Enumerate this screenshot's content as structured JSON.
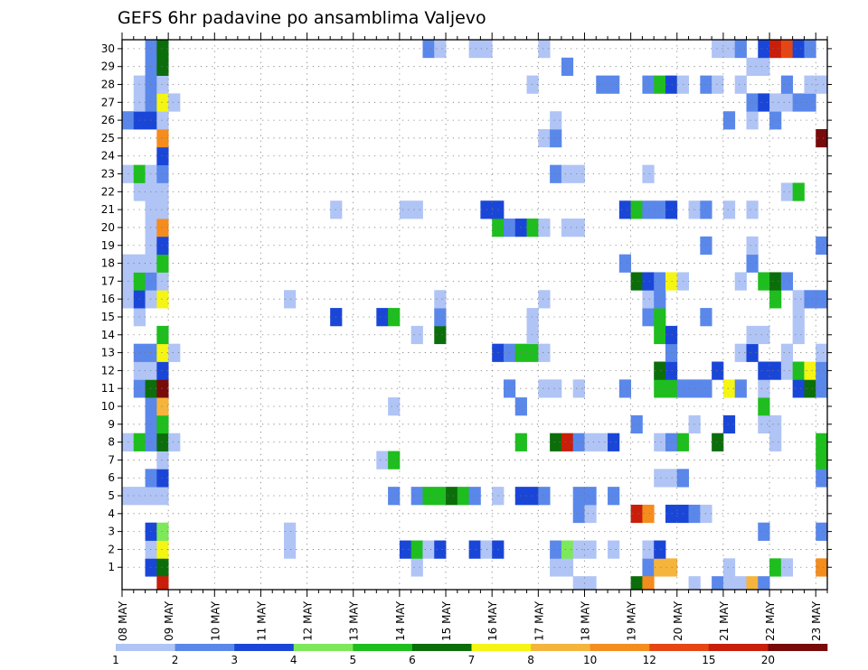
{
  "chart_data": {
    "type": "heatmap",
    "title": "GEFS 6hr padavine po ansamblima Valjevo",
    "xlabel": "",
    "ylabel": "",
    "y_members": [
      1,
      2,
      3,
      4,
      5,
      6,
      7,
      8,
      9,
      10,
      11,
      12,
      13,
      14,
      15,
      16,
      17,
      18,
      19,
      20,
      21,
      22,
      23,
      24,
      25,
      26,
      27,
      28,
      29,
      30
    ],
    "x_tick_labels": [
      "08 MAY",
      "09 MAY",
      "10 MAY",
      "11 MAY",
      "12 MAY",
      "13 MAY",
      "14 MAY",
      "15 MAY",
      "16 MAY",
      "17 MAY",
      "18 MAY",
      "19 MAY",
      "20 MAY",
      "21 MAY",
      "22 MAY",
      "23 MAY"
    ],
    "x_step_hours": 6,
    "x_steps": 61,
    "grid": true,
    "legend": "bottom",
    "colorbar": {
      "labels": [
        "1",
        "2",
        "3",
        "4",
        "5",
        "6",
        "7",
        "8",
        "10",
        "12",
        "15",
        "20"
      ],
      "colors": [
        "#b0c4f5",
        "#5a87ea",
        "#1a46d8",
        "#7de85a",
        "#1ebe1e",
        "#0b6e0b",
        "#f5f514",
        "#f5b43c",
        "#f58c1e",
        "#e64614",
        "#c81e0a",
        "#780a0a"
      ]
    },
    "cells": [
      [
        1,
        2,
        2
      ],
      [
        1,
        2,
        3
      ],
      [
        1,
        3,
        6
      ],
      [
        1,
        25,
        1
      ],
      [
        1,
        37,
        1
      ],
      [
        1,
        38,
        1
      ],
      [
        1,
        45,
        2
      ],
      [
        1,
        46,
        8
      ],
      [
        1,
        47,
        8
      ],
      [
        1,
        52,
        1
      ],
      [
        1,
        56,
        5
      ],
      [
        1,
        57,
        1
      ],
      [
        1,
        60,
        9
      ],
      [
        2,
        2,
        1
      ],
      [
        2,
        3,
        7
      ],
      [
        2,
        14,
        1
      ],
      [
        2,
        24,
        3
      ],
      [
        2,
        25,
        5
      ],
      [
        2,
        26,
        1
      ],
      [
        2,
        27,
        3
      ],
      [
        2,
        30,
        3
      ],
      [
        2,
        31,
        1
      ],
      [
        2,
        32,
        3
      ],
      [
        2,
        37,
        2
      ],
      [
        2,
        38,
        4
      ],
      [
        2,
        39,
        1
      ],
      [
        2,
        40,
        1
      ],
      [
        2,
        42,
        1
      ],
      [
        2,
        45,
        1
      ],
      [
        2,
        46,
        3
      ],
      [
        3,
        2,
        3
      ],
      [
        3,
        3,
        4
      ],
      [
        3,
        14,
        1
      ],
      [
        3,
        55,
        2
      ],
      [
        3,
        60,
        2
      ],
      [
        4,
        39,
        2
      ],
      [
        4,
        40,
        1
      ],
      [
        4,
        44,
        11
      ],
      [
        4,
        45,
        9
      ],
      [
        4,
        47,
        3
      ],
      [
        4,
        48,
        3
      ],
      [
        4,
        49,
        2
      ],
      [
        4,
        50,
        1
      ],
      [
        5,
        0,
        1
      ],
      [
        5,
        1,
        1
      ],
      [
        5,
        2,
        1
      ],
      [
        5,
        3,
        1
      ],
      [
        5,
        23,
        2
      ],
      [
        5,
        25,
        2
      ],
      [
        5,
        26,
        5
      ],
      [
        5,
        27,
        5
      ],
      [
        5,
        28,
        6
      ],
      [
        5,
        29,
        5
      ],
      [
        5,
        30,
        2
      ],
      [
        5,
        32,
        1
      ],
      [
        5,
        34,
        3
      ],
      [
        5,
        35,
        3
      ],
      [
        5,
        36,
        2
      ],
      [
        5,
        39,
        2
      ],
      [
        5,
        40,
        2
      ],
      [
        5,
        42,
        2
      ],
      [
        6,
        2,
        2
      ],
      [
        6,
        3,
        3
      ],
      [
        6,
        46,
        1
      ],
      [
        6,
        47,
        1
      ],
      [
        6,
        48,
        2
      ],
      [
        6,
        60,
        2
      ],
      [
        7,
        3,
        1
      ],
      [
        7,
        22,
        1
      ],
      [
        7,
        23,
        5
      ],
      [
        7,
        60,
        5
      ],
      [
        8,
        0,
        1
      ],
      [
        8,
        1,
        5
      ],
      [
        8,
        2,
        2
      ],
      [
        8,
        3,
        6
      ],
      [
        8,
        4,
        1
      ],
      [
        8,
        34,
        5
      ],
      [
        8,
        37,
        6
      ],
      [
        8,
        38,
        11
      ],
      [
        8,
        39,
        2
      ],
      [
        8,
        40,
        1
      ],
      [
        8,
        41,
        1
      ],
      [
        8,
        42,
        3
      ],
      [
        8,
        46,
        1
      ],
      [
        8,
        47,
        2
      ],
      [
        8,
        48,
        5
      ],
      [
        8,
        51,
        6
      ],
      [
        8,
        56,
        1
      ],
      [
        8,
        60,
        5
      ],
      [
        9,
        2,
        2
      ],
      [
        9,
        3,
        5
      ],
      [
        9,
        44,
        2
      ],
      [
        9,
        49,
        1
      ],
      [
        9,
        52,
        3
      ],
      [
        9,
        55,
        1
      ],
      [
        9,
        56,
        1
      ],
      [
        10,
        2,
        2
      ],
      [
        10,
        3,
        8
      ],
      [
        10,
        23,
        1
      ],
      [
        10,
        34,
        2
      ],
      [
        10,
        55,
        5
      ],
      [
        11,
        1,
        2
      ],
      [
        11,
        2,
        6
      ],
      [
        11,
        3,
        12
      ],
      [
        11,
        33,
        2
      ],
      [
        11,
        36,
        1
      ],
      [
        11,
        37,
        1
      ],
      [
        11,
        39,
        1
      ],
      [
        11,
        43,
        2
      ],
      [
        11,
        46,
        5
      ],
      [
        11,
        47,
        5
      ],
      [
        11,
        48,
        2
      ],
      [
        11,
        49,
        2
      ],
      [
        11,
        50,
        2
      ],
      [
        11,
        52,
        7
      ],
      [
        11,
        53,
        2
      ],
      [
        11,
        55,
        1
      ],
      [
        11,
        58,
        3
      ],
      [
        11,
        59,
        6
      ],
      [
        11,
        60,
        2
      ],
      [
        12,
        1,
        1
      ],
      [
        12,
        2,
        1
      ],
      [
        12,
        3,
        3
      ],
      [
        12,
        46,
        6
      ],
      [
        12,
        47,
        3
      ],
      [
        12,
        51,
        3
      ],
      [
        12,
        55,
        3
      ],
      [
        12,
        56,
        3
      ],
      [
        12,
        57,
        1
      ],
      [
        12,
        58,
        5
      ],
      [
        12,
        59,
        7
      ],
      [
        12,
        60,
        2
      ],
      [
        13,
        1,
        2
      ],
      [
        13,
        2,
        2
      ],
      [
        13,
        3,
        7
      ],
      [
        13,
        4,
        1
      ],
      [
        13,
        32,
        3
      ],
      [
        13,
        33,
        2
      ],
      [
        13,
        34,
        5
      ],
      [
        13,
        35,
        5
      ],
      [
        13,
        36,
        1
      ],
      [
        13,
        47,
        2
      ],
      [
        13,
        53,
        1
      ],
      [
        13,
        54,
        3
      ],
      [
        13,
        57,
        1
      ],
      [
        13,
        60,
        1
      ],
      [
        14,
        3,
        5
      ],
      [
        14,
        25,
        1
      ],
      [
        14,
        27,
        6
      ],
      [
        14,
        35,
        1
      ],
      [
        14,
        46,
        5
      ],
      [
        14,
        47,
        3
      ],
      [
        14,
        54,
        1
      ],
      [
        14,
        55,
        1
      ],
      [
        14,
        58,
        1
      ],
      [
        15,
        1,
        1
      ],
      [
        15,
        18,
        3
      ],
      [
        15,
        22,
        3
      ],
      [
        15,
        23,
        5
      ],
      [
        15,
        27,
        2
      ],
      [
        15,
        35,
        1
      ],
      [
        15,
        45,
        2
      ],
      [
        15,
        46,
        5
      ],
      [
        15,
        50,
        2
      ],
      [
        15,
        58,
        1
      ],
      [
        16,
        0,
        1
      ],
      [
        16,
        1,
        3
      ],
      [
        16,
        2,
        1
      ],
      [
        16,
        3,
        7
      ],
      [
        16,
        14,
        1
      ],
      [
        16,
        27,
        1
      ],
      [
        16,
        36,
        1
      ],
      [
        16,
        45,
        1
      ],
      [
        16,
        46,
        2
      ],
      [
        16,
        56,
        5
      ],
      [
        16,
        58,
        1
      ],
      [
        16,
        59,
        2
      ],
      [
        16,
        60,
        2
      ],
      [
        17,
        0,
        1
      ],
      [
        17,
        1,
        5
      ],
      [
        17,
        2,
        2
      ],
      [
        17,
        3,
        1
      ],
      [
        17,
        44,
        6
      ],
      [
        17,
        45,
        3
      ],
      [
        17,
        46,
        2
      ],
      [
        17,
        47,
        7
      ],
      [
        17,
        48,
        1
      ],
      [
        17,
        53,
        1
      ],
      [
        17,
        55,
        5
      ],
      [
        17,
        56,
        6
      ],
      [
        17,
        57,
        2
      ],
      [
        18,
        0,
        1
      ],
      [
        18,
        1,
        1
      ],
      [
        18,
        2,
        1
      ],
      [
        18,
        3,
        5
      ],
      [
        18,
        43,
        2
      ],
      [
        18,
        54,
        2
      ],
      [
        19,
        2,
        1
      ],
      [
        19,
        3,
        3
      ],
      [
        19,
        50,
        2
      ],
      [
        19,
        54,
        1
      ],
      [
        19,
        60,
        2
      ],
      [
        20,
        2,
        1
      ],
      [
        20,
        3,
        9
      ],
      [
        20,
        32,
        5
      ],
      [
        20,
        33,
        2
      ],
      [
        20,
        34,
        3
      ],
      [
        20,
        35,
        5
      ],
      [
        20,
        36,
        1
      ],
      [
        20,
        38,
        1
      ],
      [
        20,
        39,
        1
      ],
      [
        21,
        2,
        1
      ],
      [
        21,
        3,
        1
      ],
      [
        21,
        18,
        1
      ],
      [
        21,
        24,
        1
      ],
      [
        21,
        25,
        1
      ],
      [
        21,
        31,
        3
      ],
      [
        21,
        32,
        3
      ],
      [
        21,
        43,
        3
      ],
      [
        21,
        44,
        5
      ],
      [
        21,
        45,
        2
      ],
      [
        21,
        46,
        2
      ],
      [
        21,
        47,
        3
      ],
      [
        21,
        49,
        1
      ],
      [
        21,
        50,
        2
      ],
      [
        21,
        52,
        1
      ],
      [
        21,
        54,
        1
      ],
      [
        22,
        1,
        1
      ],
      [
        22,
        2,
        1
      ],
      [
        22,
        3,
        1
      ],
      [
        22,
        57,
        1
      ],
      [
        22,
        58,
        5
      ],
      [
        23,
        0,
        1
      ],
      [
        23,
        1,
        5
      ],
      [
        23,
        2,
        1
      ],
      [
        23,
        3,
        2
      ],
      [
        23,
        37,
        2
      ],
      [
        23,
        38,
        1
      ],
      [
        23,
        39,
        1
      ],
      [
        23,
        45,
        1
      ],
      [
        24,
        3,
        3
      ],
      [
        25,
        3,
        9
      ],
      [
        25,
        36,
        1
      ],
      [
        25,
        37,
        2
      ],
      [
        25,
        60,
        12
      ],
      [
        26,
        0,
        2
      ],
      [
        26,
        1,
        3
      ],
      [
        26,
        2,
        3
      ],
      [
        26,
        3,
        1
      ],
      [
        26,
        37,
        1
      ],
      [
        26,
        52,
        2
      ],
      [
        26,
        54,
        1
      ],
      [
        26,
        56,
        2
      ],
      [
        27,
        1,
        1
      ],
      [
        27,
        2,
        2
      ],
      [
        27,
        3,
        7
      ],
      [
        27,
        4,
        1
      ],
      [
        27,
        54,
        2
      ],
      [
        27,
        55,
        3
      ],
      [
        27,
        56,
        1
      ],
      [
        27,
        57,
        1
      ],
      [
        27,
        58,
        2
      ],
      [
        27,
        59,
        2
      ],
      [
        28,
        1,
        1
      ],
      [
        28,
        2,
        2
      ],
      [
        28,
        3,
        1
      ],
      [
        28,
        35,
        1
      ],
      [
        28,
        41,
        2
      ],
      [
        28,
        42,
        2
      ],
      [
        28,
        45,
        2
      ],
      [
        28,
        46,
        5
      ],
      [
        28,
        47,
        3
      ],
      [
        28,
        48,
        1
      ],
      [
        28,
        50,
        2
      ],
      [
        28,
        51,
        1
      ],
      [
        28,
        53,
        1
      ],
      [
        28,
        57,
        2
      ],
      [
        28,
        59,
        1
      ],
      [
        28,
        60,
        1
      ],
      [
        29,
        2,
        2
      ],
      [
        29,
        3,
        6
      ],
      [
        29,
        38,
        2
      ],
      [
        29,
        54,
        1
      ],
      [
        29,
        55,
        1
      ],
      [
        30,
        2,
        2
      ],
      [
        30,
        3,
        6
      ],
      [
        30,
        26,
        2
      ],
      [
        30,
        27,
        1
      ],
      [
        30,
        30,
        1
      ],
      [
        30,
        31,
        1
      ],
      [
        30,
        36,
        1
      ],
      [
        30,
        51,
        1
      ],
      [
        30,
        52,
        1
      ],
      [
        30,
        53,
        2
      ],
      [
        30,
        55,
        3
      ],
      [
        30,
        56,
        11
      ],
      [
        30,
        57,
        10
      ],
      [
        30,
        58,
        3
      ],
      [
        30,
        59,
        2
      ],
      [
        0,
        3,
        11
      ],
      [
        0,
        39,
        1
      ],
      [
        0,
        40,
        1
      ],
      [
        0,
        44,
        6
      ],
      [
        0,
        45,
        9
      ],
      [
        0,
        49,
        1
      ],
      [
        0,
        51,
        2
      ],
      [
        0,
        52,
        1
      ],
      [
        0,
        53,
        1
      ],
      [
        0,
        54,
        8
      ],
      [
        0,
        55,
        2
      ]
    ]
  }
}
